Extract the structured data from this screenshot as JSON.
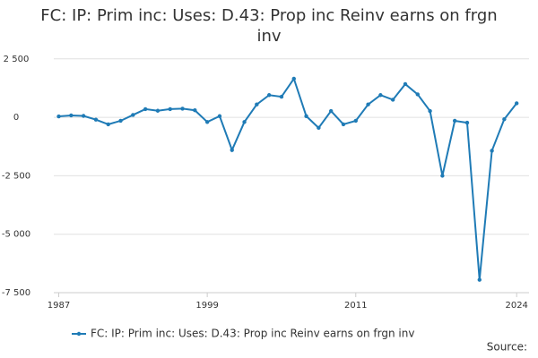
{
  "chart_data": {
    "type": "line",
    "title": "FC: IP: Prim inc: Uses: D.43: Prop inc Reinv earns on frgn inv",
    "source": "Source:",
    "x": [
      1987,
      1988,
      1989,
      1990,
      1991,
      1992,
      1993,
      1994,
      1995,
      1996,
      1997,
      1998,
      1999,
      2000,
      2001,
      2002,
      2003,
      2004,
      2005,
      2006,
      2007,
      2008,
      2009,
      2010,
      2011,
      2012,
      2013,
      2014,
      2015,
      2016,
      2017,
      2018,
      2019,
      2020,
      2021,
      2022,
      2023,
      2024
    ],
    "series": [
      {
        "name": "FC: IP: Prim inc: Uses: D.43: Prop inc Reinv earns on frgn inv",
        "color": "#1f7bb6",
        "values": [
          40,
          80,
          60,
          -100,
          -300,
          -150,
          100,
          350,
          280,
          350,
          370,
          300,
          -200,
          50,
          -1400,
          -200,
          550,
          950,
          880,
          1650,
          50,
          -450,
          270,
          -300,
          -150,
          550,
          950,
          750,
          1420,
          980,
          270,
          -2500,
          -150,
          -230,
          -6950,
          -1430,
          -80,
          600
        ]
      }
    ],
    "xlim": [
      1986.6,
      2025
    ],
    "xticks": [
      1987,
      1999,
      2011,
      2024
    ],
    "ylim": [
      -7500,
      2950
    ],
    "yticks": [
      {
        "value": -7500,
        "label": "-7 500"
      },
      {
        "value": -5000,
        "label": "-5 000"
      },
      {
        "value": -2500,
        "label": "-2 500"
      },
      0,
      {
        "value": 2500,
        "label": "2 500"
      }
    ],
    "grid": true,
    "legend": "bottom"
  }
}
